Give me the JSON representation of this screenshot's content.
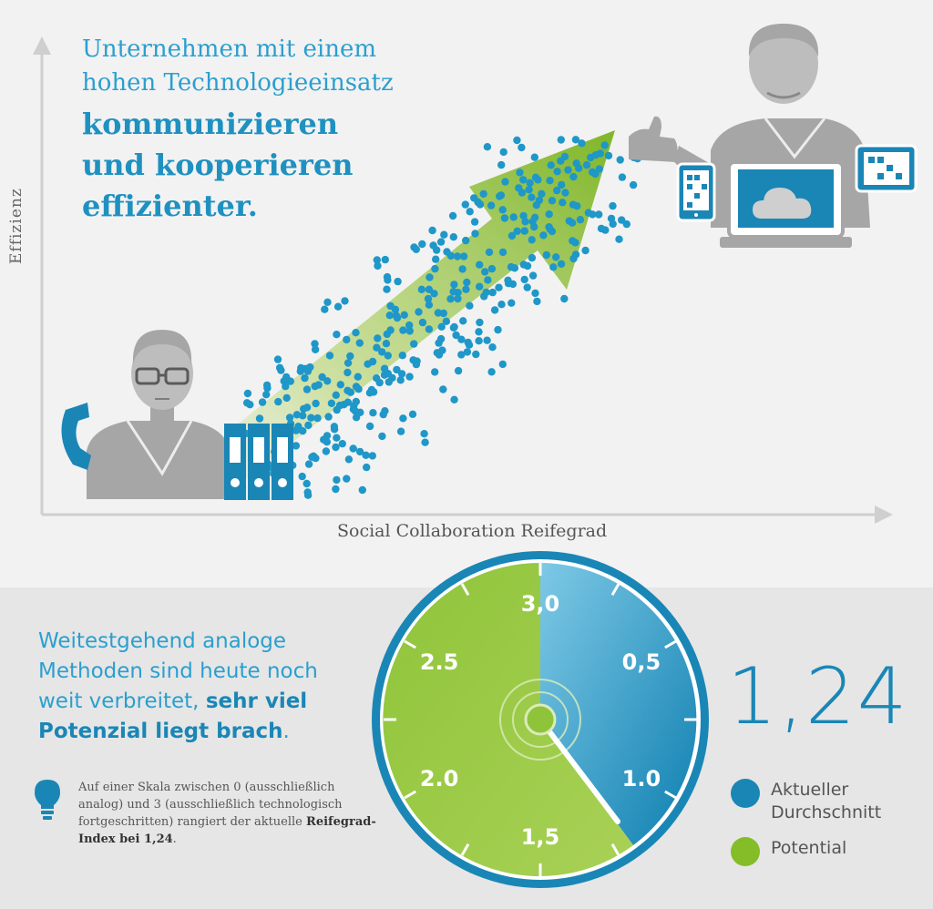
{
  "headline": {
    "light_line1": "Unternehmen mit einem",
    "light_line2": "hohen Technologieeinsatz",
    "bold_line1": "kommunizieren",
    "bold_line2": "und kooperieren",
    "bold_line3": "effizienter."
  },
  "axes": {
    "y_label": "Effizienz",
    "x_label": "Social Collaboration Reifegrad"
  },
  "subhead": {
    "line_part1": "Weitestgehend analoge Methoden sind heute noch weit verbreitet, ",
    "line_bold": "sehr viel Potenzial liegt brach",
    "line_end": "."
  },
  "note": {
    "text": "Auf einer Skala zwischen 0 (ausschließlich analog) und 3 (ausschließlich technologisch fortgeschritten) rangiert der aktuelle ",
    "bold": "Reifegrad-Index bei 1,24",
    "end": "."
  },
  "gauge": {
    "value": 1.24,
    "value_label": "1,24",
    "scale_min": 0,
    "scale_max": 3,
    "labels": [
      "3,0",
      "0,5",
      "1.0",
      "1,5",
      "2.0",
      "2.5"
    ]
  },
  "legend": {
    "current_label": "Aktueller Durchschnitt",
    "potential_label": "Potential"
  },
  "colors": {
    "blue": "#1a86b6",
    "light_blue": "#2b9fcf",
    "green": "#84bd28",
    "gray": "#a6a6a6"
  },
  "icons": [
    "person-with-phone-icon",
    "binders-icon",
    "person-thumbs-up-icon",
    "laptop-cloud-icon",
    "tablet-icon",
    "trend-arrow-icon",
    "lightbulb-icon"
  ]
}
